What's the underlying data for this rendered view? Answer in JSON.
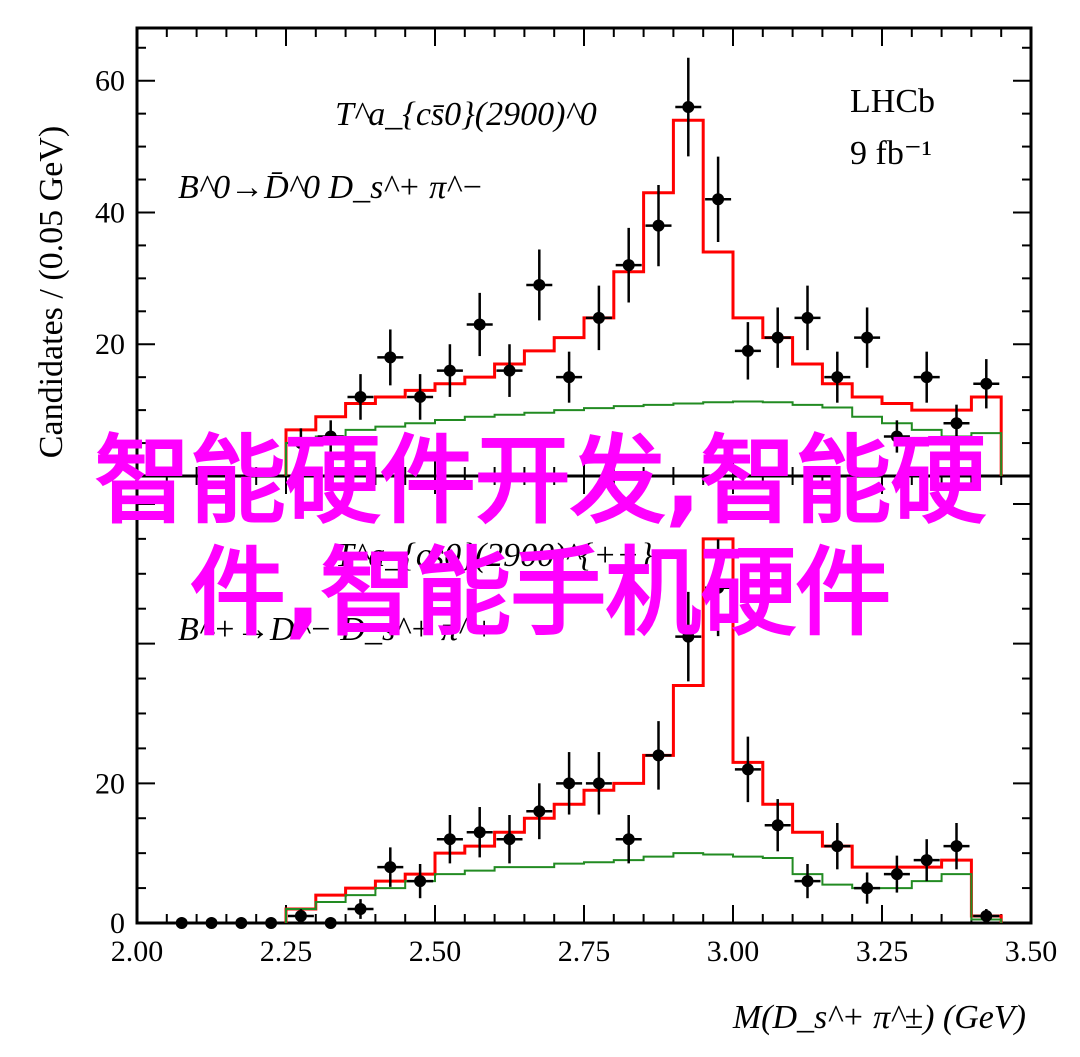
{
  "overlay_text": "智能硬件开发,智能硬件,智能手机硬件",
  "colors": {
    "fit": "#ff0000",
    "background": "#228b22",
    "data": "#000000",
    "overlay": "#ff00ff"
  },
  "chart_data": [
    {
      "type": "line",
      "panel": "top",
      "annotation_line1": "T^a_{cs̄0}(2900)^0",
      "annotation_line2": "B^0→D̄^0 D_s^+ π^−",
      "experiment": "LHCb",
      "luminosity": "9 fb⁻¹",
      "ylabel": "Candidates / (0.05 GeV)",
      "ylim": [
        0,
        68
      ],
      "yticks": [
        20,
        40,
        60
      ],
      "xlim": [
        2.0,
        3.5
      ],
      "bin_edges": [
        2.25,
        2.3,
        2.35,
        2.4,
        2.45,
        2.5,
        2.55,
        2.6,
        2.65,
        2.7,
        2.75,
        2.8,
        2.85,
        2.9,
        2.95,
        3.0,
        3.05,
        3.1,
        3.15,
        3.2,
        3.25,
        3.3,
        3.35,
        3.4,
        3.45
      ],
      "series": [
        {
          "kind": "data",
          "x": [
            2.275,
            2.325,
            2.375,
            2.425,
            2.475,
            2.525,
            2.575,
            2.625,
            2.675,
            2.725,
            2.775,
            2.825,
            2.875,
            2.925,
            2.975,
            3.025,
            3.075,
            3.125,
            3.175,
            3.225,
            3.275,
            3.325,
            3.375,
            3.425
          ],
          "y": [
            5,
            6,
            12,
            18,
            12,
            16,
            23,
            16,
            29,
            15,
            24,
            32,
            38,
            56,
            42,
            19,
            21,
            24,
            15,
            21,
            6,
            15,
            8,
            14
          ]
        },
        {
          "kind": "fit",
          "values": [
            7,
            9,
            11,
            12,
            13,
            14,
            15,
            17,
            19,
            21,
            24,
            31,
            43,
            54,
            34,
            24,
            21,
            17,
            14,
            12,
            11,
            10,
            10,
            12
          ]
        },
        {
          "kind": "background",
          "values": [
            5,
            6,
            7,
            7.5,
            8,
            8.5,
            9,
            9.3,
            9.6,
            10,
            10.3,
            10.6,
            10.8,
            11,
            11.2,
            11.3,
            11.2,
            10.8,
            10.4,
            9,
            8,
            7,
            6,
            6.5
          ]
        }
      ]
    },
    {
      "type": "line",
      "panel": "bottom",
      "annotation_line1": "T^a_{cs̄0}(2900)^{++}",
      "annotation_line2": "B^+→D^− D_s^+ π^+",
      "xlabel": "M(D_s^+ π^±) (GeV)",
      "xlim": [
        2.0,
        3.5
      ],
      "xticks": [
        2.0,
        2.25,
        2.5,
        2.75,
        3.0,
        3.25,
        3.5
      ],
      "ylim": [
        0,
        64
      ],
      "yticks": [
        0,
        20
      ],
      "bin_edges": [
        2.25,
        2.3,
        2.35,
        2.4,
        2.45,
        2.5,
        2.55,
        2.6,
        2.65,
        2.7,
        2.75,
        2.8,
        2.85,
        2.9,
        2.95,
        3.0,
        3.05,
        3.1,
        3.15,
        3.2,
        3.25,
        3.3,
        3.35,
        3.4,
        3.45
      ],
      "series": [
        {
          "kind": "data",
          "x": [
            2.075,
            2.125,
            2.175,
            2.225,
            2.275,
            2.325,
            2.375,
            2.425,
            2.475,
            2.525,
            2.575,
            2.625,
            2.675,
            2.725,
            2.775,
            2.825,
            2.875,
            2.925,
            2.975,
            3.025,
            3.075,
            3.125,
            3.175,
            3.225,
            3.275,
            3.325,
            3.375,
            3.425
          ],
          "y": [
            0,
            0,
            0,
            0,
            1,
            0,
            2,
            8,
            6,
            12,
            13,
            12,
            16,
            20,
            20,
            12,
            24,
            41,
            48,
            22,
            14,
            6,
            11,
            5,
            7,
            9,
            11,
            1
          ]
        },
        {
          "kind": "fit",
          "values": [
            2,
            4,
            5,
            6,
            7,
            10,
            11,
            13,
            15,
            17,
            19,
            20,
            24,
            34,
            55,
            23,
            17,
            13,
            11,
            8,
            8,
            8,
            9,
            1
          ]
        },
        {
          "kind": "background",
          "values": [
            2,
            3,
            4,
            5,
            6,
            7,
            7.5,
            8,
            8,
            8.5,
            8.7,
            9,
            9.5,
            10,
            9.8,
            9.5,
            9.3,
            7,
            5.5,
            5,
            5,
            6,
            7,
            0.5
          ]
        }
      ]
    }
  ]
}
